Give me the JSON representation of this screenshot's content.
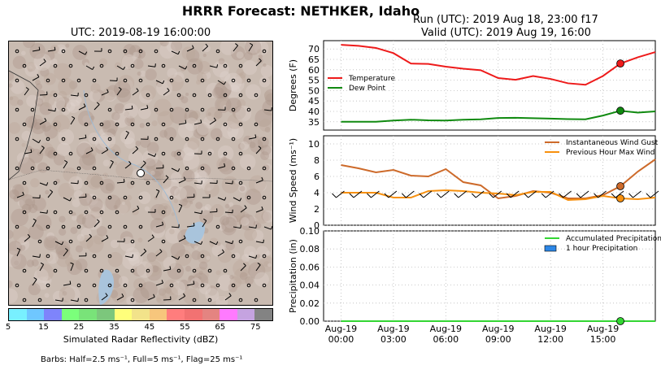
{
  "header": {
    "title": "HRRR Forecast: NETHKER, Idaho",
    "run": "Run (UTC): 2019 Aug 18, 23:00 f17",
    "valid": "Valid (UTC): 2019 Aug 19, 16:00"
  },
  "map": {
    "time": "UTC: 2019-08-19 16:00:00"
  },
  "colorbar": {
    "label": "Simulated Radar Reflectivity (dBZ)",
    "ticks": [
      "5",
      "15",
      "25",
      "35",
      "45",
      "55",
      "65",
      "75"
    ],
    "colors": [
      "#78f0ff",
      "#6fc7ff",
      "#7e84fb",
      "#7bff7b",
      "#79e379",
      "#7cc77c",
      "#ffff7b",
      "#f2e38a",
      "#f7c67c",
      "#ff7d7d",
      "#f27272",
      "#e48481",
      "#ff7aff",
      "#c5a3e0",
      "#838383"
    ]
  },
  "barb_note": "Barbs: Half=2.5 ms⁻¹, Full=5 ms⁻¹, Flag=25 ms⁻¹",
  "chart_data": [
    {
      "type": "line",
      "ylabel": "Degrees (F)",
      "ylim": [
        31,
        74
      ],
      "yticks": [
        35,
        40,
        45,
        50,
        55,
        60,
        65,
        70
      ],
      "grid": true,
      "legend": "center-left",
      "series": [
        {
          "name": "Temperature",
          "color": "#ee1b1b",
          "values": [
            72,
            71.5,
            70.5,
            68,
            63,
            62.8,
            61.5,
            60.5,
            59.8,
            56,
            55.2,
            57,
            55.6,
            53.5,
            52.8,
            57,
            63,
            66,
            68.5
          ]
        },
        {
          "name": "Dew Point",
          "color": "#108a10",
          "values": [
            35,
            35,
            35,
            35.6,
            36,
            35.7,
            35.6,
            36,
            36.2,
            36.8,
            36.9,
            36.7,
            36.5,
            36.3,
            36.2,
            38,
            40.3,
            39.4,
            40
          ]
        }
      ]
    },
    {
      "type": "line",
      "ylabel": "Wind Speed  (ms⁻¹)",
      "ylim": [
        0,
        11
      ],
      "yticks": [
        0,
        2,
        4,
        6,
        8,
        10
      ],
      "grid": true,
      "legend": "top-right",
      "series": [
        {
          "name": "Instantaneous Wind Gust",
          "color": "#cd6a2a",
          "values": [
            7.4,
            7,
            6.5,
            6.8,
            6.1,
            6,
            6.9,
            5.3,
            4.9,
            3.3,
            3.6,
            4.2,
            4,
            3.3,
            3.3,
            3.7,
            4.8,
            6.6,
            8.1
          ]
        },
        {
          "name": "Previous Hour Max Wind",
          "color": "#f7900e",
          "values": [
            4,
            4,
            4,
            3.4,
            3.4,
            4.2,
            4.3,
            4.2,
            4,
            3.9,
            3.7,
            4.1,
            4.1,
            3.1,
            3.2,
            3.6,
            3.3,
            3.2,
            3.4
          ]
        }
      ]
    },
    {
      "type": "line",
      "ylabel": "Precipitation (in)",
      "xlabel": "",
      "ylim": [
        0,
        0.1
      ],
      "yticks": [
        "0.00",
        "0.02",
        "0.04",
        "0.06",
        "0.08",
        "0.10"
      ],
      "x_ticks": [
        {
          "l1": "Aug-19",
          "l2": "00:00"
        },
        {
          "l1": "Aug-19",
          "l2": "03:00"
        },
        {
          "l1": "Aug-19",
          "l2": "06:00"
        },
        {
          "l1": "Aug-19",
          "l2": "09:00"
        },
        {
          "l1": "Aug-19",
          "l2": "12:00"
        },
        {
          "l1": "Aug-19",
          "l2": "15:00"
        }
      ],
      "grid": true,
      "legend": "top-right",
      "series": [
        {
          "name": "Accumulated Precipitation",
          "color": "#33d633",
          "values": [
            0,
            0,
            0,
            0,
            0,
            0,
            0,
            0,
            0,
            0,
            0,
            0,
            0,
            0,
            0,
            0,
            0,
            0,
            0
          ]
        },
        {
          "name": "1 hour Precipitation",
          "color": "#2c86e6",
          "values": [
            0,
            0,
            0,
            0,
            0,
            0,
            0,
            0,
            0,
            0,
            0,
            0,
            0,
            0,
            0,
            0,
            0,
            0,
            0
          ]
        }
      ]
    }
  ]
}
